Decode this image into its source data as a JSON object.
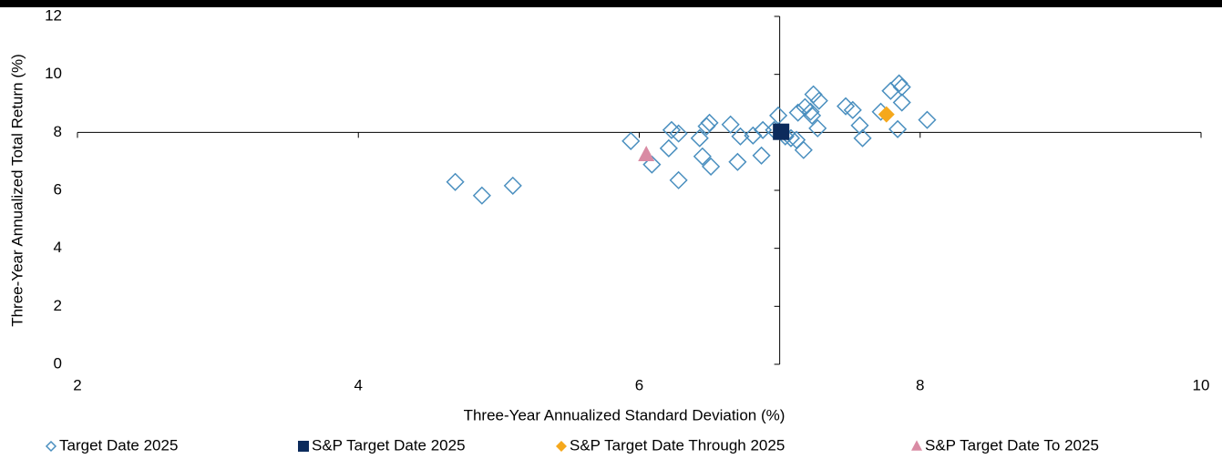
{
  "chart_data": {
    "type": "scatter",
    "x_label": "Three-Year Annualized Standard Deviation (%)",
    "y_label": "Three-Year Annualized Total Return (%)",
    "xlim": [
      2,
      10
    ],
    "xticks": [
      2,
      4,
      6,
      8,
      10
    ],
    "ylim": [
      0,
      12
    ],
    "yticks": [
      0,
      2,
      4,
      6,
      8,
      10,
      12
    ],
    "axis_cross": [
      7,
      8
    ],
    "legend": "bottom",
    "series": [
      {
        "name": "Target Date 2025",
        "color": "#4a8fbf",
        "marker": "diamond-open",
        "x": [
          4.69,
          4.88,
          5.1,
          5.94,
          6.09,
          6.21,
          6.23,
          6.28,
          6.28,
          6.43,
          6.45,
          6.48,
          6.5,
          6.51,
          6.65,
          6.7,
          6.72,
          6.81,
          6.87,
          6.88,
          6.96,
          6.99,
          7.04,
          7.08,
          7.12,
          7.13,
          7.17,
          7.18,
          7.22,
          7.23,
          7.24,
          7.27,
          7.28,
          7.47,
          7.52,
          7.57,
          7.59,
          7.72,
          7.79,
          7.84,
          7.85,
          7.87,
          7.87,
          8.05
        ],
        "values": [
          6.29,
          5.82,
          6.16,
          7.7,
          6.89,
          7.45,
          8.08,
          6.35,
          7.96,
          7.8,
          7.17,
          8.21,
          8.33,
          6.82,
          8.27,
          6.98,
          7.86,
          7.89,
          7.2,
          8.08,
          8.08,
          8.58,
          7.86,
          7.8,
          7.74,
          8.68,
          7.39,
          8.87,
          8.71,
          8.58,
          9.31,
          8.14,
          9.09,
          8.9,
          8.77,
          8.24,
          7.8,
          8.71,
          9.43,
          8.11,
          9.69,
          9.03,
          9.56,
          8.43
        ]
      },
      {
        "name": "S&P Target Date 2025",
        "color": "#0c2b5c",
        "marker": "square",
        "x": [
          7.01
        ],
        "values": [
          8.02
        ]
      },
      {
        "name": "S&P Target Date Through 2025",
        "color": "#f5a81c",
        "marker": "diamond",
        "x": [
          7.76
        ],
        "values": [
          8.62
        ]
      },
      {
        "name": "S&P Target Date To 2025",
        "color": "#d98ba4",
        "marker": "triangle",
        "x": [
          6.05
        ],
        "values": [
          7.23
        ]
      }
    ]
  }
}
